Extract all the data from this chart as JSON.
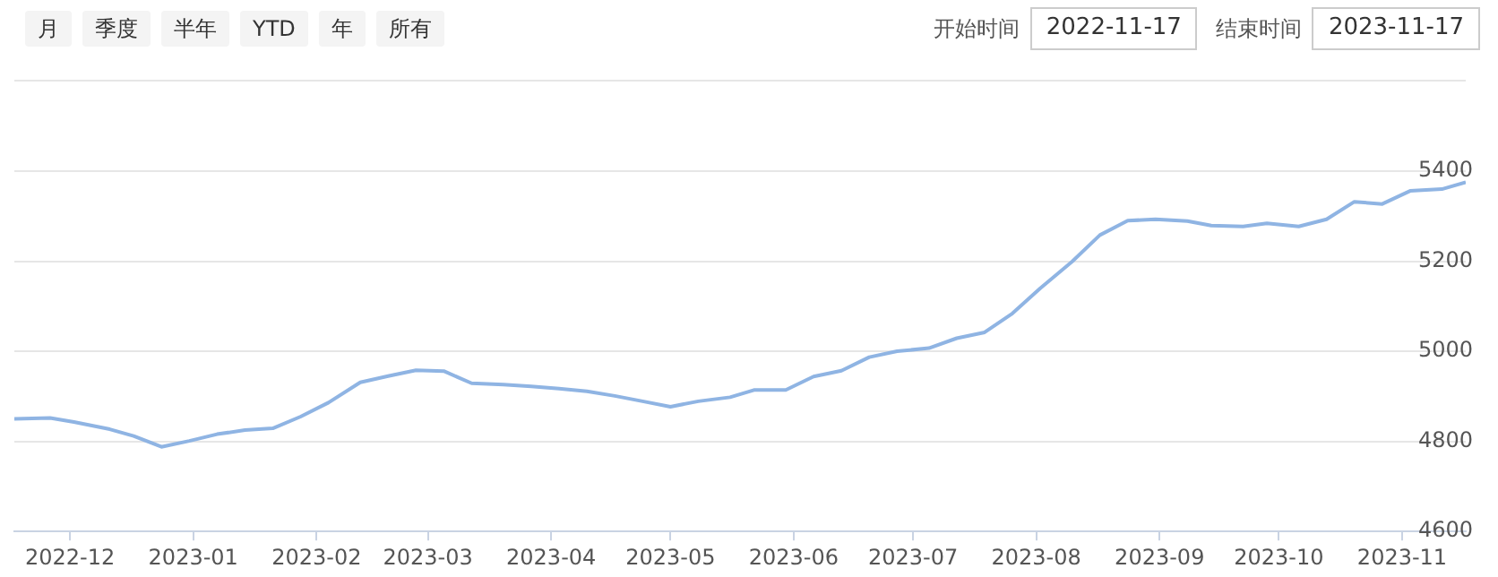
{
  "chart_data": {
    "type": "line",
    "annotations": [
      "月",
      "季度",
      "半年",
      "YTD",
      "年",
      "所有",
      "开始时间",
      "2022-11-17",
      "结束时间",
      "2023-11-17"
    ],
    "x": [
      "2022-11-17",
      "2022-11-26",
      "2022-12-02",
      "2022-12-11",
      "2022-12-17",
      "2022-12-24",
      "2022-12-31",
      "2023-01-07",
      "2023-01-14",
      "2023-01-21",
      "2023-01-28",
      "2023-02-04",
      "2023-02-12",
      "2023-02-19",
      "2023-02-26",
      "2023-03-05",
      "2023-03-12",
      "2023-03-20",
      "2023-03-27",
      "2023-04-03",
      "2023-04-10",
      "2023-04-17",
      "2023-04-24",
      "2023-05-01",
      "2023-05-08",
      "2023-05-16",
      "2023-05-22",
      "2023-05-30",
      "2023-06-06",
      "2023-06-13",
      "2023-06-20",
      "2023-06-27",
      "2023-07-05",
      "2023-07-12",
      "2023-07-19",
      "2023-07-26",
      "2023-08-02",
      "2023-08-10",
      "2023-08-17",
      "2023-08-24",
      "2023-08-31",
      "2023-09-08",
      "2023-09-14",
      "2023-09-22",
      "2023-09-28",
      "2023-10-06",
      "2023-10-13",
      "2023-10-20",
      "2023-10-27",
      "2023-11-03",
      "2023-11-11",
      "2023-11-17"
    ],
    "series": [
      {
        "color": "#8fb4e3",
        "values": [
          4850,
          4852,
          4843,
          4827,
          4812,
          4788,
          4801,
          4816,
          4825,
          4829,
          4855,
          4886,
          4931,
          4945,
          4958,
          4956,
          4929,
          4926,
          4922,
          4917,
          4911,
          4901,
          4889,
          4877,
          4889,
          4898,
          4914,
          4914,
          4944,
          4957,
          4987,
          5000,
          5007,
          5029,
          5042,
          5084,
          5140,
          5199,
          5258,
          5290,
          5293,
          5289,
          5279,
          5277,
          5284,
          5277,
          5293,
          5332,
          5327,
          5356,
          5360,
          5375
        ]
      }
    ],
    "xlim": [
      "2022-11-17",
      "2023-11-17"
    ],
    "xticks": [
      {
        "value": "2022-12-01",
        "label": "2022-12"
      },
      {
        "value": "2023-01-01",
        "label": "2023-01"
      },
      {
        "value": "2023-02-01",
        "label": "2023-02"
      },
      {
        "value": "2023-03-01",
        "label": "2023-03"
      },
      {
        "value": "2023-04-01",
        "label": "2023-04"
      },
      {
        "value": "2023-05-01",
        "label": "2023-05"
      },
      {
        "value": "2023-06-01",
        "label": "2023-06"
      },
      {
        "value": "2023-07-01",
        "label": "2023-07"
      },
      {
        "value": "2023-08-01",
        "label": "2023-08"
      },
      {
        "value": "2023-09-01",
        "label": "2023-09"
      },
      {
        "value": "2023-10-01",
        "label": "2023-10"
      },
      {
        "value": "2023-11-01",
        "label": "2023-11"
      }
    ],
    "ylim": [
      4600,
      5600
    ],
    "yticks": [
      4600,
      4800,
      5000,
      5200,
      5400,
      {
        "value": 5600,
        "label": null
      }
    ],
    "grid": "y",
    "legend": false,
    "marker": "none",
    "line_style": "solid"
  }
}
